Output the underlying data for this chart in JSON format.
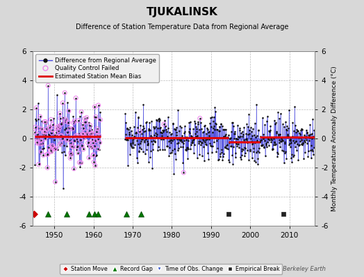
{
  "title": "TJUKALINSK",
  "subtitle": "Difference of Station Temperature Data from Regional Average",
  "ylabel_right": "Monthly Temperature Anomaly Difference (°C)",
  "ylim": [
    -6,
    6
  ],
  "xlim": [
    1944.5,
    2016.5
  ],
  "xticks": [
    1950,
    1960,
    1970,
    1980,
    1990,
    2000,
    2010
  ],
  "yticks": [
    -6,
    -4,
    -2,
    0,
    2,
    4,
    6
  ],
  "background_color": "#d8d8d8",
  "plot_bg_color": "#ffffff",
  "grid_color": "#bbbbbb",
  "line_color": "#4444dd",
  "dot_color": "#111111",
  "bias_color": "#dd0000",
  "qc_color": "#ee88ee",
  "station_move_color": "#cc0000",
  "record_gap_color": "#007700",
  "time_obs_color": "#3355cc",
  "empirical_break_color": "#222222",
  "watermark": "Berkeley Earth",
  "segments": [
    {
      "start": 1945.0,
      "end": 1961.8,
      "bias": 0.13
    },
    {
      "start": 1968.0,
      "end": 1994.5,
      "bias": 0.05
    },
    {
      "start": 1994.5,
      "end": 2002.5,
      "bias": -0.22
    },
    {
      "start": 2002.5,
      "end": 2016.5,
      "bias": 0.08
    }
  ],
  "station_moves": [
    1944.9
  ],
  "record_gaps": [
    1948.3,
    1953.1,
    1958.8,
    1960.2,
    1961.2,
    1968.4,
    1972.2
  ],
  "time_obs_changes": [],
  "empirical_breaks": [
    1994.5,
    2008.5
  ],
  "seed1": 17,
  "seed2": 99,
  "seed3": 55,
  "seed4": 31,
  "noise1": 1.05,
  "noise2": 0.8,
  "noise3": 0.78,
  "noise4": 0.72
}
